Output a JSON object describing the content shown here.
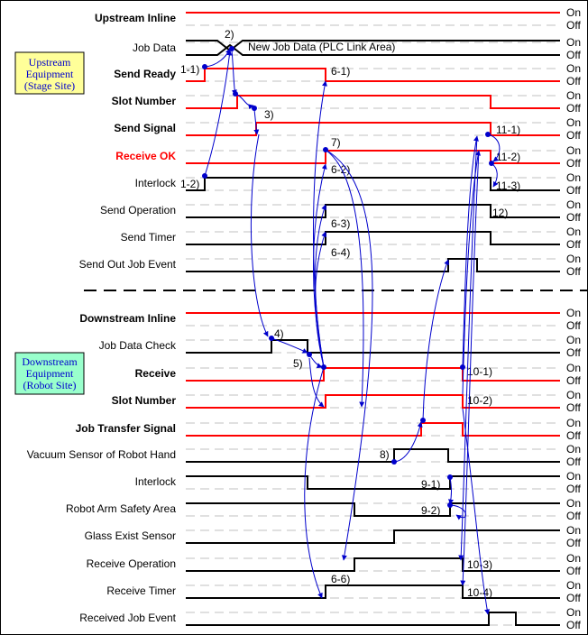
{
  "title_note": "New Job Data (PLC Link Area)",
  "sections": [
    {
      "id": "upstream",
      "box_lines": [
        "Upstream",
        "Equipment",
        "(Stage Site)"
      ],
      "box_color": "#ffff99",
      "box_text_color": "#0000cc"
    },
    {
      "id": "downstream",
      "box_lines": [
        "Downstream",
        "Equipment",
        "(Robot Site)"
      ],
      "box_color": "#99ffcc",
      "box_text_color": "#0000cc"
    }
  ],
  "on_label": "On",
  "off_label": "Off",
  "colors": {
    "red": "#ff0000",
    "black": "#000000",
    "blue": "#0000cc",
    "grid": "#c0c0c0"
  },
  "signals": [
    {
      "label": "Upstream Inline",
      "bold": true,
      "color": "red"
    },
    {
      "label": "Job Data",
      "bold": false,
      "color": "black"
    },
    {
      "label": "Send Ready",
      "bold": true,
      "color": "red"
    },
    {
      "label": "Slot Number",
      "bold": true,
      "color": "red"
    },
    {
      "label": "Send Signal",
      "bold": true,
      "color": "red"
    },
    {
      "label": "Receive OK",
      "bold": true,
      "color": "red",
      "label_color": "red"
    },
    {
      "label": "Interlock",
      "bold": false,
      "color": "black"
    },
    {
      "label": "Send Operation",
      "bold": false,
      "color": "black"
    },
    {
      "label": "Send Timer",
      "bold": false,
      "color": "black"
    },
    {
      "label": "Send Out Job Event",
      "bold": false,
      "color": "black"
    },
    {
      "label": "Downstream Inline",
      "bold": true,
      "color": "red"
    },
    {
      "label": "Job Data Check",
      "bold": false,
      "color": "black"
    },
    {
      "label": "Receive",
      "bold": true,
      "color": "red"
    },
    {
      "label": "Slot Number",
      "bold": true,
      "color": "red"
    },
    {
      "label": "Job Transfer Signal",
      "bold": true,
      "color": "red"
    },
    {
      "label": "Vacuum Sensor of Robot Hand",
      "bold": false,
      "color": "black"
    },
    {
      "label": "Interlock",
      "bold": false,
      "color": "black"
    },
    {
      "label": "Robot Arm Safety Area",
      "bold": false,
      "color": "black"
    },
    {
      "label": "Glass Exist Sensor",
      "bold": false,
      "color": "black"
    },
    {
      "label": "Receive Operation",
      "bold": false,
      "color": "black"
    },
    {
      "label": "Receive Timer",
      "bold": false,
      "color": "black"
    },
    {
      "label": "Received Job Event",
      "bold": false,
      "color": "black"
    }
  ],
  "steps": [
    "1-1)",
    "1-2)",
    "2)",
    "3)",
    "4)",
    "5)",
    "6-1)",
    "6-2)",
    "6-3)",
    "6-4)",
    "6-6)",
    "7)",
    "8)",
    "9-1)",
    "9-2)",
    "10-1)",
    "10-2)",
    "10-3)",
    "10-4)",
    "11-1)",
    "11-2)",
    "11-3)",
    "12)"
  ]
}
